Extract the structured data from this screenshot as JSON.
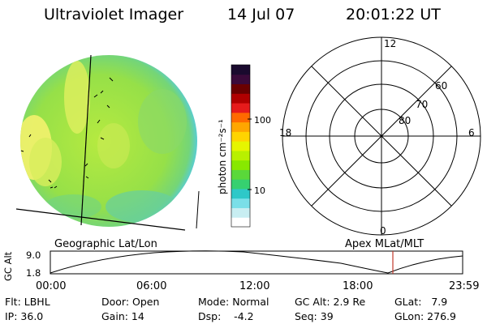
{
  "header": {
    "title": "Ultraviolet Imager",
    "date": "14 Jul 07",
    "time": "20:01:22 UT"
  },
  "colorbar": {
    "unit_label": "photon cm⁻²s⁻¹",
    "tick_100": "100",
    "tick_10": "10",
    "colors": [
      "#1a0a2e",
      "#3a0a3a",
      "#6a0000",
      "#b00000",
      "#e61b1b",
      "#ff6a00",
      "#ffa600",
      "#ffd400",
      "#e6f500",
      "#b8f000",
      "#88e800",
      "#5ad83a",
      "#36d070",
      "#2ec8c8",
      "#7adfe8",
      "#c8eef2",
      "#ffffff"
    ]
  },
  "globe": {
    "colors": {
      "bright": "#f0f06a",
      "mid": "#a8e63a",
      "dim": "#72d27e",
      "edge": "#5ccfd6"
    }
  },
  "polar": {
    "labels": {
      "top": "12",
      "bottom": "0",
      "left": "18",
      "right": "6"
    },
    "rings": [
      "80",
      "70",
      "60"
    ]
  },
  "coords": {
    "left": "Geographic Lat/Lon",
    "right": "Apex MLat/MLT"
  },
  "orbit": {
    "y_label": "GC Alt",
    "y_max": "9.0",
    "y_min": "1.8",
    "x_ticks": [
      "00:00",
      "06:00",
      "12:00",
      "18:00",
      "23:59"
    ],
    "marker_color": "#c0392b"
  },
  "info": {
    "flt": "Flt: LBHL",
    "ip": "IP: 36.0",
    "door": "Door: Open",
    "gain": "Gain: 14",
    "mode": "Mode: Normal",
    "dsp": "Dsp:    -4.2",
    "gc_alt": "GC Alt: 2.9 Re",
    "seq": "Seq: 39",
    "glat": "GLat:   7.9",
    "glon": "GLon: 276.9"
  }
}
